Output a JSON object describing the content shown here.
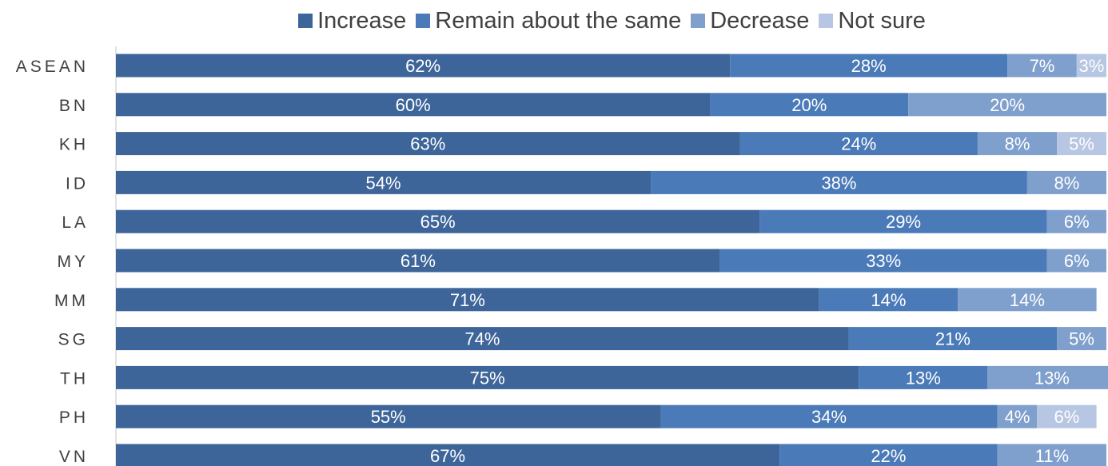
{
  "chart_data": {
    "type": "bar",
    "orientation": "horizontal",
    "stacked": true,
    "title": "",
    "xlabel": "",
    "ylabel": "",
    "xlim": [
      0,
      100
    ],
    "grid": false,
    "legend_position": "top",
    "categories": [
      "ASEAN",
      "BN",
      "KH",
      "ID",
      "LA",
      "MY",
      "MM",
      "SG",
      "TH",
      "PH",
      "VN"
    ],
    "series": [
      {
        "name": "Increase",
        "color": "#3d6599",
        "values": [
          62,
          60,
          63,
          54,
          65,
          61,
          71,
          74,
          75,
          55,
          67
        ],
        "labels": [
          "62%",
          "60%",
          "63%",
          "54%",
          "65%",
          "61%",
          "71%",
          "74%",
          "75%",
          "55%",
          "67%"
        ]
      },
      {
        "name": "Remain about the same",
        "color": "#4a7ab8",
        "values": [
          28,
          20,
          24,
          38,
          29,
          33,
          14,
          21,
          13,
          34,
          22
        ],
        "labels": [
          "28%",
          "20%",
          "24%",
          "38%",
          "29%",
          "33%",
          "14%",
          "21%",
          "13%",
          "34%",
          "22%"
        ]
      },
      {
        "name": "Decrease",
        "color": "#7f9fcc",
        "values": [
          7,
          20,
          8,
          8,
          6,
          6,
          14,
          5,
          13,
          4,
          11
        ],
        "labels": [
          "7%",
          "20%",
          "8%",
          "8%",
          "6%",
          "6%",
          "14%",
          "5%",
          "13%",
          "4%",
          "11%"
        ]
      },
      {
        "name": "Not sure",
        "color": "#b7c6e2",
        "values": [
          3,
          0,
          5,
          0,
          0,
          0,
          0,
          0,
          0,
          6,
          0
        ],
        "labels": [
          "3%",
          "",
          "5%",
          "",
          "",
          "",
          "",
          "",
          "",
          "6%",
          ""
        ]
      }
    ],
    "axis_color": "#d9d9d9"
  }
}
